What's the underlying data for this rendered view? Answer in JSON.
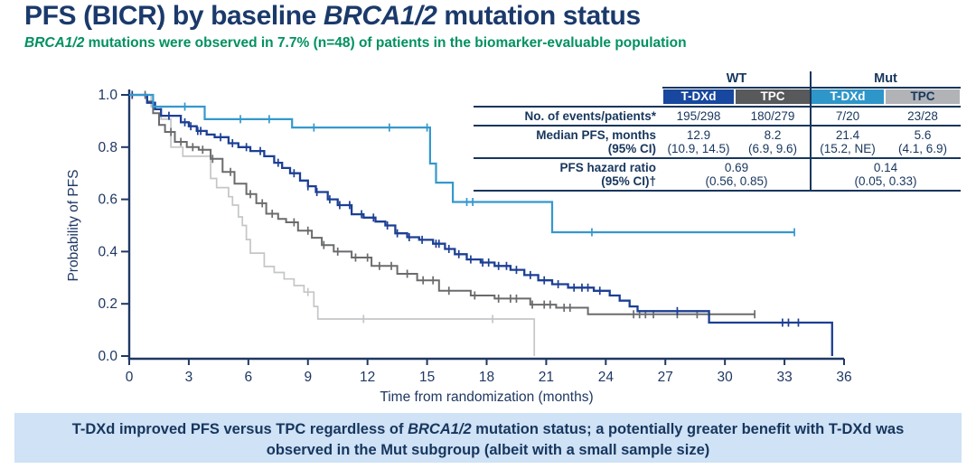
{
  "slide": {
    "title": {
      "pre": "PFS (BICR) by baseline ",
      "gene": "BRCA1/2",
      "post": " mutation status"
    },
    "subtitle": {
      "gene": "BRCA1/2",
      "rest": " mutations were observed in 7.7% (n=48) of patients in the biomarker-evaluable population"
    },
    "banner": {
      "pre": "T-DXd improved PFS versus TPC regardless of ",
      "gene": "BRCA1/2",
      "post": " mutation status; a potentially greater benefit with T-DXd was observed in the Mut subgroup (albeit with a small sample size)"
    }
  },
  "table": {
    "groups": [
      {
        "label": "WT"
      },
      {
        "label": "Mut"
      }
    ],
    "columns": [
      {
        "label": "T-DXd",
        "bg": "#17479e",
        "fg": "#ffffff"
      },
      {
        "label": "TPC",
        "bg": "#58595b",
        "fg": "#ffffff"
      },
      {
        "label": "T-DXd",
        "bg": "#2e96c9",
        "fg": "#ffffff"
      },
      {
        "label": "TPC",
        "bg": "#b1b3b6",
        "fg": "#17365d"
      }
    ],
    "row_events": {
      "label": "No. of events/patients*",
      "values": [
        "195/298",
        "180/279",
        "7/20",
        "23/28"
      ]
    },
    "row_median": {
      "label1": "Median PFS, months",
      "label2": "(95% CI)",
      "values1": [
        "12.9",
        "8.2",
        "21.4",
        "5.6"
      ],
      "values2": [
        "(10.9, 14.5)",
        "(6.9, 9.6)",
        "(15.2, NE)",
        "(4.1, 6.9)"
      ]
    },
    "row_hr": {
      "label1": "PFS hazard ratio",
      "label2": "(95% CI)†",
      "wt1": "0.69",
      "wt2": "(0.56, 0.85)",
      "mut1": "0.14",
      "mut2": "(0.05, 0.33)"
    }
  },
  "chart_data": {
    "type": "line",
    "subtype": "kaplan_meier_step",
    "title": "",
    "xlabel": "Time from randomization (months)",
    "ylabel": "Probability of PFS",
    "xlim": [
      0,
      36
    ],
    "ylim": [
      0.0,
      1.0
    ],
    "x_ticks": [
      0,
      3,
      6,
      9,
      12,
      15,
      18,
      21,
      24,
      27,
      30,
      33,
      36
    ],
    "y_ticks": [
      0.0,
      0.2,
      0.4,
      0.6,
      0.8,
      1.0
    ],
    "grid": false,
    "legend": "none (table at top right identifies the four arms)",
    "series": [
      {
        "id": "wt-tdxd",
        "name": "WT T-DXd",
        "color": "#1c3f94",
        "width": 2.3,
        "z": 3,
        "points": [
          [
            0,
            1.0
          ],
          [
            0.9,
            0.97
          ],
          [
            1.3,
            0.945
          ],
          [
            1.6,
            0.92
          ],
          [
            2.6,
            0.895
          ],
          [
            3.0,
            0.88
          ],
          [
            3.4,
            0.862
          ],
          [
            3.9,
            0.848
          ],
          [
            4.3,
            0.838
          ],
          [
            5.0,
            0.815
          ],
          [
            5.5,
            0.8
          ],
          [
            6.1,
            0.785
          ],
          [
            6.8,
            0.765
          ],
          [
            7.3,
            0.74
          ],
          [
            7.7,
            0.72
          ],
          [
            8.1,
            0.7
          ],
          [
            8.6,
            0.672
          ],
          [
            9.0,
            0.65
          ],
          [
            9.4,
            0.628
          ],
          [
            10.0,
            0.6
          ],
          [
            10.5,
            0.578
          ],
          [
            11.2,
            0.543
          ],
          [
            11.8,
            0.53
          ],
          [
            12.4,
            0.515
          ],
          [
            12.9,
            0.5
          ],
          [
            13.4,
            0.47
          ],
          [
            14.0,
            0.455
          ],
          [
            14.6,
            0.445
          ],
          [
            15.3,
            0.43
          ],
          [
            15.9,
            0.41
          ],
          [
            16.4,
            0.39
          ],
          [
            17.0,
            0.37
          ],
          [
            17.7,
            0.358
          ],
          [
            18.4,
            0.345
          ],
          [
            19.2,
            0.33
          ],
          [
            19.9,
            0.31
          ],
          [
            20.6,
            0.29
          ],
          [
            21.3,
            0.275
          ],
          [
            22.1,
            0.262
          ],
          [
            23.4,
            0.25
          ],
          [
            24.2,
            0.232
          ],
          [
            24.7,
            0.212
          ],
          [
            25.2,
            0.19
          ],
          [
            25.6,
            0.172
          ],
          [
            29.2,
            0.128
          ],
          [
            35.4,
            0.0
          ]
        ],
        "censor_times": [
          0.15,
          2.0,
          2.8,
          3.1,
          3.45,
          3.6,
          4.6,
          5.2,
          5.9,
          6.6,
          7.5,
          8.3,
          9.0,
          9.45,
          10.1,
          10.6,
          11.1,
          11.7,
          12.3,
          13.0,
          13.5,
          14.1,
          14.75,
          15.45,
          15.6,
          16.1,
          16.6,
          17.2,
          17.8,
          18.1,
          18.6,
          19.0,
          19.5,
          20.2,
          20.9,
          21.6,
          22.4,
          22.8,
          23.1,
          23.7,
          27.6,
          32.9,
          33.2,
          33.7
        ]
      },
      {
        "id": "wt-tpc",
        "name": "WT TPC",
        "color": "#6a6b6d",
        "width": 2.0,
        "z": 2,
        "points": [
          [
            0,
            1.0
          ],
          [
            0.9,
            0.975
          ],
          [
            1.2,
            0.93
          ],
          [
            1.5,
            0.885
          ],
          [
            1.8,
            0.858
          ],
          [
            2.3,
            0.82
          ],
          [
            2.9,
            0.8
          ],
          [
            3.5,
            0.79
          ],
          [
            4.1,
            0.755
          ],
          [
            4.7,
            0.705
          ],
          [
            5.3,
            0.66
          ],
          [
            5.9,
            0.62
          ],
          [
            6.4,
            0.585
          ],
          [
            6.9,
            0.545
          ],
          [
            7.5,
            0.525
          ],
          [
            7.9,
            0.512
          ],
          [
            8.5,
            0.48
          ],
          [
            9.2,
            0.453
          ],
          [
            9.7,
            0.425
          ],
          [
            10.3,
            0.4
          ],
          [
            11.2,
            0.377
          ],
          [
            12.2,
            0.345
          ],
          [
            13.5,
            0.315
          ],
          [
            14.5,
            0.29
          ],
          [
            15.6,
            0.25
          ],
          [
            17.2,
            0.232
          ],
          [
            18.4,
            0.22
          ],
          [
            20.2,
            0.197
          ],
          [
            21.5,
            0.185
          ],
          [
            23.1,
            0.16
          ],
          [
            31.5,
            0.16
          ]
        ],
        "censor_times": [
          0.8,
          2.1,
          2.6,
          3.2,
          3.7,
          4.2,
          5.1,
          6.1,
          6.7,
          7.2,
          8.3,
          9.0,
          9.8,
          10.5,
          11.4,
          12.0,
          12.6,
          13.2,
          14.0,
          14.8,
          15.3,
          16.1,
          17.4,
          18.6,
          19.2,
          19.5,
          20.3,
          20.9,
          21.2,
          21.9,
          22.2,
          25.4,
          25.7,
          26.0,
          26.4,
          27.6,
          28.6,
          31.5
        ]
      },
      {
        "id": "mut-tdxd",
        "name": "Mut T-DXd",
        "color": "#3598cd",
        "width": 2.2,
        "z": 4,
        "points": [
          [
            0,
            1.0
          ],
          [
            1.2,
            0.955
          ],
          [
            3.8,
            0.907
          ],
          [
            8.2,
            0.875
          ],
          [
            15.15,
            0.737
          ],
          [
            15.45,
            0.664
          ],
          [
            16.3,
            0.59
          ],
          [
            21.3,
            0.474
          ],
          [
            33.5,
            0.474
          ]
        ],
        "censor_times": [
          2.8,
          5.6,
          7.05,
          9.3,
          13.1,
          15.0,
          17.0,
          17.3,
          23.3,
          33.5
        ]
      },
      {
        "id": "mut-tpc",
        "name": "Mut TPC",
        "color": "#c4c6c8",
        "width": 1.7,
        "z": 1,
        "points": [
          [
            0,
            1.0
          ],
          [
            1.1,
            0.955
          ],
          [
            1.6,
            0.907
          ],
          [
            2.1,
            0.8
          ],
          [
            2.7,
            0.765
          ],
          [
            4.1,
            0.68
          ],
          [
            4.4,
            0.645
          ],
          [
            5.0,
            0.61
          ],
          [
            5.2,
            0.578
          ],
          [
            5.5,
            0.533
          ],
          [
            5.7,
            0.5
          ],
          [
            5.9,
            0.446
          ],
          [
            6.1,
            0.394
          ],
          [
            6.8,
            0.343
          ],
          [
            7.3,
            0.32
          ],
          [
            7.8,
            0.295
          ],
          [
            8.3,
            0.27
          ],
          [
            8.8,
            0.245
          ],
          [
            9.3,
            0.19
          ],
          [
            9.5,
            0.142
          ],
          [
            20.4,
            0.0
          ]
        ],
        "censor_times": [
          9.0,
          11.8,
          18.3
        ]
      }
    ]
  },
  "colors": {
    "title": "#1b3a6b",
    "subtitle_green": "#00915f",
    "axis": "#1f3864",
    "table_rule": "#17365d",
    "banner_bg": "#cfe2f6",
    "banner_text": "#17365d"
  }
}
